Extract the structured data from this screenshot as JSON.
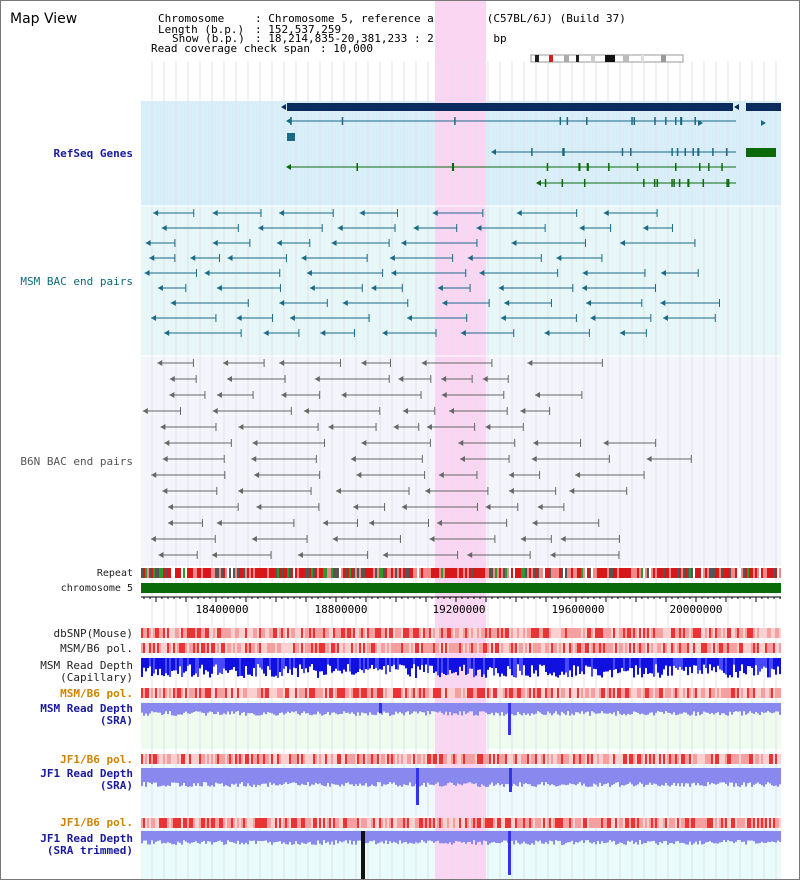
{
  "page": {
    "title": "Map View"
  },
  "header": {
    "chromosome_key": "Chromosome",
    "chromosome_val": ": Chromosome 5, reference assembly (C57BL/6J) (Build 37)",
    "length_key": "Length (b.p.)",
    "length_val": ": 152,537,259",
    "show_key": "Show (b.p.)",
    "show_val": ": 18,214,835-20,381,233 : 2,166,399 bp",
    "coverage_key": "Read coverage check span",
    "coverage_val": ": 10,000"
  },
  "tracks": {
    "refseq": "RefSeq Genes",
    "msm_bac": "MSM BAC end pairs",
    "b6n_bac": "B6N BAC end pairs",
    "repeat": "Repeat",
    "chromosome": "chromosome 5",
    "dbsnp": "dbSNP(Mouse)",
    "msm_b6_pol": "MSM/B6 pol.",
    "msm_read_depth_cap_1": "MSM Read Depth",
    "msm_read_depth_cap_2": "(Capillary)",
    "msm_b6_pol_sra": "MSM/B6 pol.",
    "msm_read_depth_sra_1": "MSM Read Depth",
    "msm_read_depth_sra_2": "(SRA)",
    "jf1_b6_pol": "JF1/B6 pol.",
    "jf1_read_depth_1": "JF1 Read Depth",
    "jf1_read_depth_2": "(SRA)",
    "jf1_b6_pol_2": "JF1/B6 pol.",
    "jf1_trim_1": "JF1 Read Depth",
    "jf1_trim_2": "(SRA trimmed)"
  },
  "axis": {
    "ticks": [
      "18400000",
      "18800000",
      "19200000",
      "19600000",
      "20000000"
    ]
  },
  "colors": {
    "highlight": "#fbd6f3",
    "refseq_bg": "#d8eff9",
    "msm_bg": "#e7f7f8",
    "gene_navy": "#0b2a5e",
    "gene_teal": "#1a6a86",
    "gene_green": "#0a6a0a",
    "chromosome": "#0a6a0a",
    "depth_blue": "#1010e0",
    "depth_light": "#8888ee"
  }
}
